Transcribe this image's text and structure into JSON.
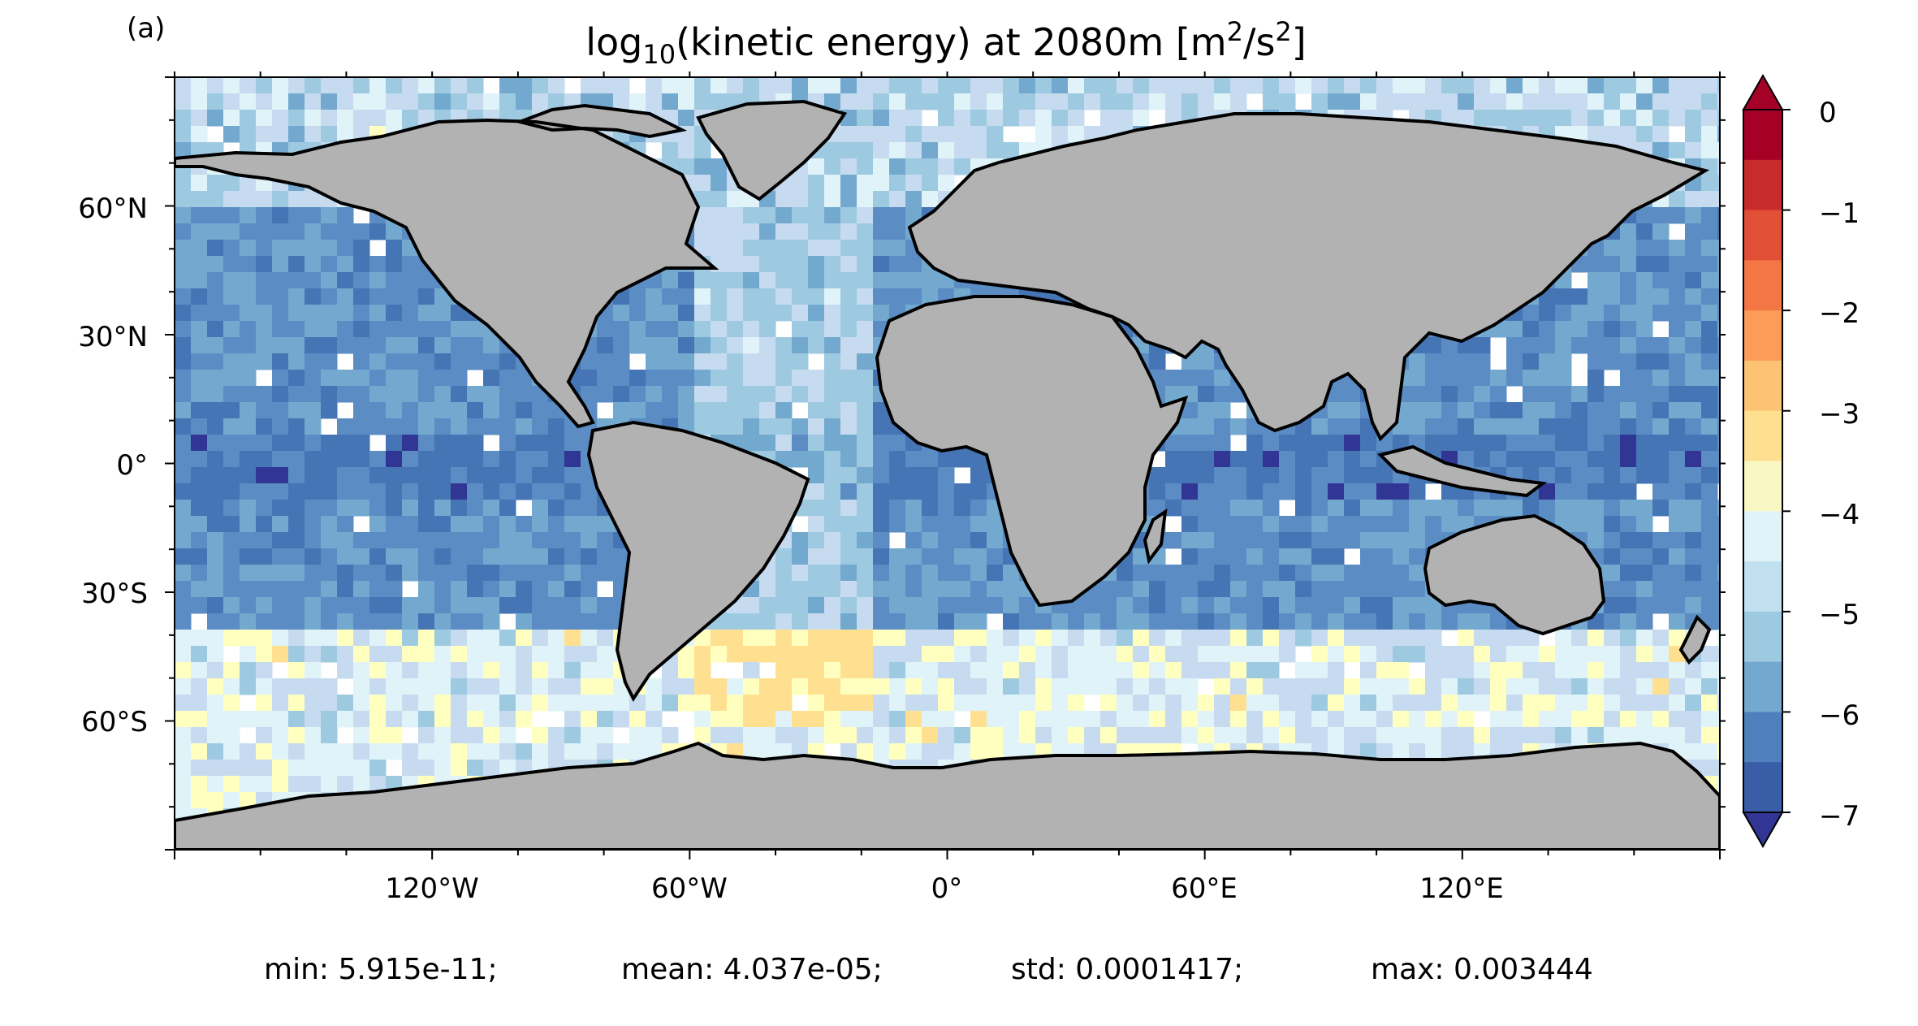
{
  "panel_label": "(a)",
  "title": {
    "prefix": "log",
    "subscript": "10",
    "middle": "(kinetic energy) at 2080m [m",
    "sup1": "2",
    "slash": "/s",
    "sup2": "2",
    "suffix": "]"
  },
  "colors": {
    "land": "#b2b2b2",
    "coast": "#000000",
    "missing": "#ffffff",
    "palette": [
      "#313695",
      "#4575b4",
      "#5b8cc4",
      "#74a9cf",
      "#9ecae1",
      "#c6dbef",
      "#e0f3f8",
      "#ffffbf",
      "#fee090",
      "#fdae61",
      "#f46d43",
      "#d73027",
      "#a50026"
    ]
  },
  "axes": {
    "y_ticks": [
      "60°N",
      "30°N",
      "0°",
      "30°S",
      "60°S"
    ],
    "x_ticks": [
      "120°W",
      "60°W",
      "0°",
      "60°E",
      "120°E"
    ]
  },
  "colorbar": {
    "ticks": [
      "0",
      "−1",
      "−2",
      "−3",
      "−4",
      "−5",
      "−6",
      "−7"
    ],
    "range": [
      -7,
      0
    ],
    "extend": "both"
  },
  "stats": {
    "min": "min: 5.915e-11;",
    "mean": "mean: 4.037e-05;",
    "std": "std: 0.0001417;",
    "max": "max: 0.003444"
  },
  "chart_data": {
    "type": "heatmap",
    "title": "log10(kinetic energy) at 2080m [m2/s2]",
    "projection": "PlateCarree",
    "lon_range": [
      -180,
      180
    ],
    "lat_range": [
      -90,
      90
    ],
    "x_ticks": [
      -120,
      -60,
      0,
      60,
      120
    ],
    "y_ticks": [
      60,
      30,
      0,
      -30,
      -60
    ],
    "color_range": [
      -7,
      0
    ],
    "colormap": "RdYlBu_r",
    "stats": {
      "min": 5.915e-11,
      "mean": 4.037e-05,
      "std": 0.0001417,
      "max": 0.003444
    }
  }
}
